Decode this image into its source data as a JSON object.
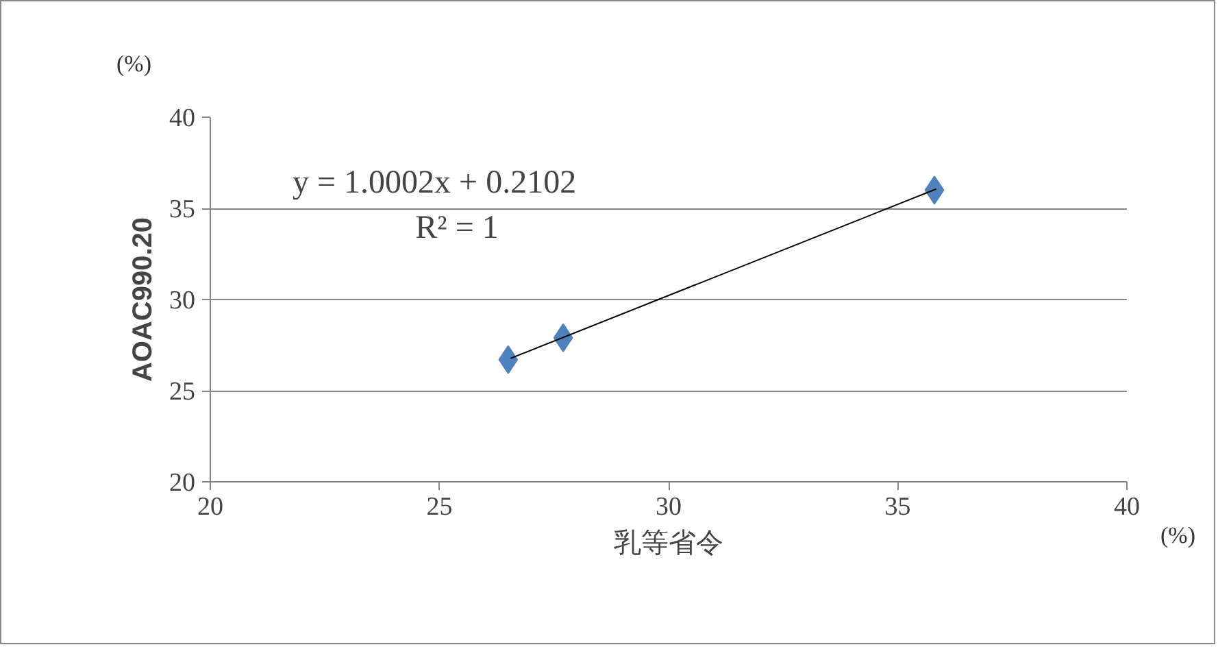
{
  "chart_data": {
    "type": "scatter",
    "xlabel": "乳等省令",
    "ylabel": "AOAC990.20",
    "annotations": [
      "y = 1.0002x + 0.2102",
      "R² = 1",
      "(%)",
      "(%)"
    ],
    "xlim": [
      20,
      40
    ],
    "ylim": [
      20,
      40
    ],
    "xticks": [
      20,
      25,
      30,
      35,
      40
    ],
    "yticks": [
      20,
      25,
      30,
      35,
      40
    ],
    "grid": "y",
    "marker": "diamond",
    "series": [
      {
        "color": "#4f81bd",
        "x": [
          26.5,
          27.7,
          35.8
        ],
        "values": [
          26.7,
          27.9,
          36.0
        ]
      },
      {
        "type": "line",
        "marker": "none",
        "color": "#000000",
        "x": [
          26.55,
          35.84
        ],
        "values": [
          26.77,
          36.06
        ]
      }
    ]
  }
}
